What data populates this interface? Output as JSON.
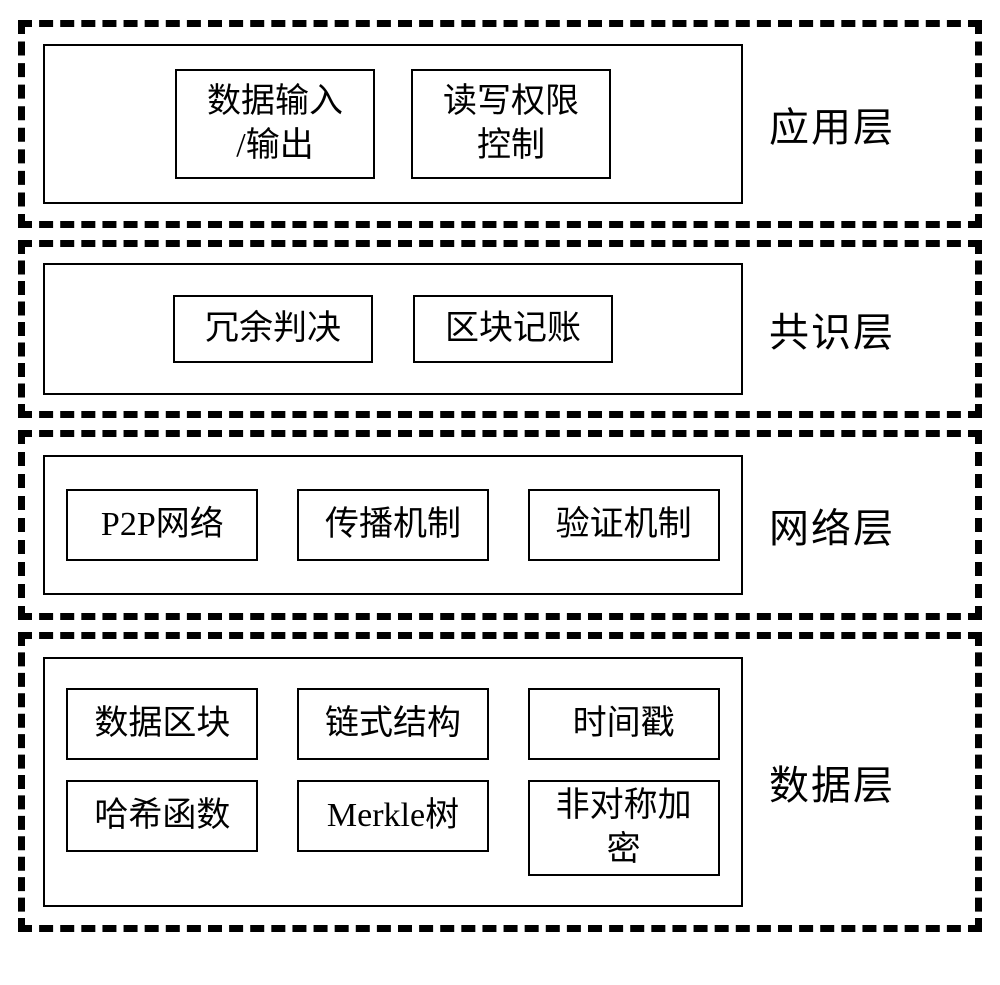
{
  "diagram": {
    "type": "layered-architecture",
    "background_color": "#ffffff",
    "border_color": "#000000",
    "text_color": "#000000",
    "dashed_border_width": 7,
    "solid_border_width": 2,
    "label_fontsize": 40,
    "cell_fontsize": 34,
    "font_family": "SimSun / Songti serif",
    "layers": [
      {
        "id": "application",
        "label": "应用层",
        "cells": [
          {
            "line1": "数据输入",
            "line2": "/输出"
          },
          {
            "line1": "读写权限",
            "line2": "控制"
          }
        ]
      },
      {
        "id": "consensus",
        "label": "共识层",
        "cells": [
          {
            "line1": "冗余判决"
          },
          {
            "line1": "区块记账"
          }
        ]
      },
      {
        "id": "network",
        "label": "网络层",
        "cells": [
          {
            "line1": "P2P网络"
          },
          {
            "line1": "传播机制"
          },
          {
            "line1": "验证机制"
          }
        ]
      },
      {
        "id": "data",
        "label": "数据层",
        "cells": [
          {
            "line1": "数据区块"
          },
          {
            "line1": "链式结构"
          },
          {
            "line1": "时间戳"
          },
          {
            "line1": "哈希函数"
          },
          {
            "line1": "Merkle树"
          },
          {
            "line1": "非对称加",
            "line2": "密",
            "tall": true
          }
        ]
      }
    ]
  }
}
